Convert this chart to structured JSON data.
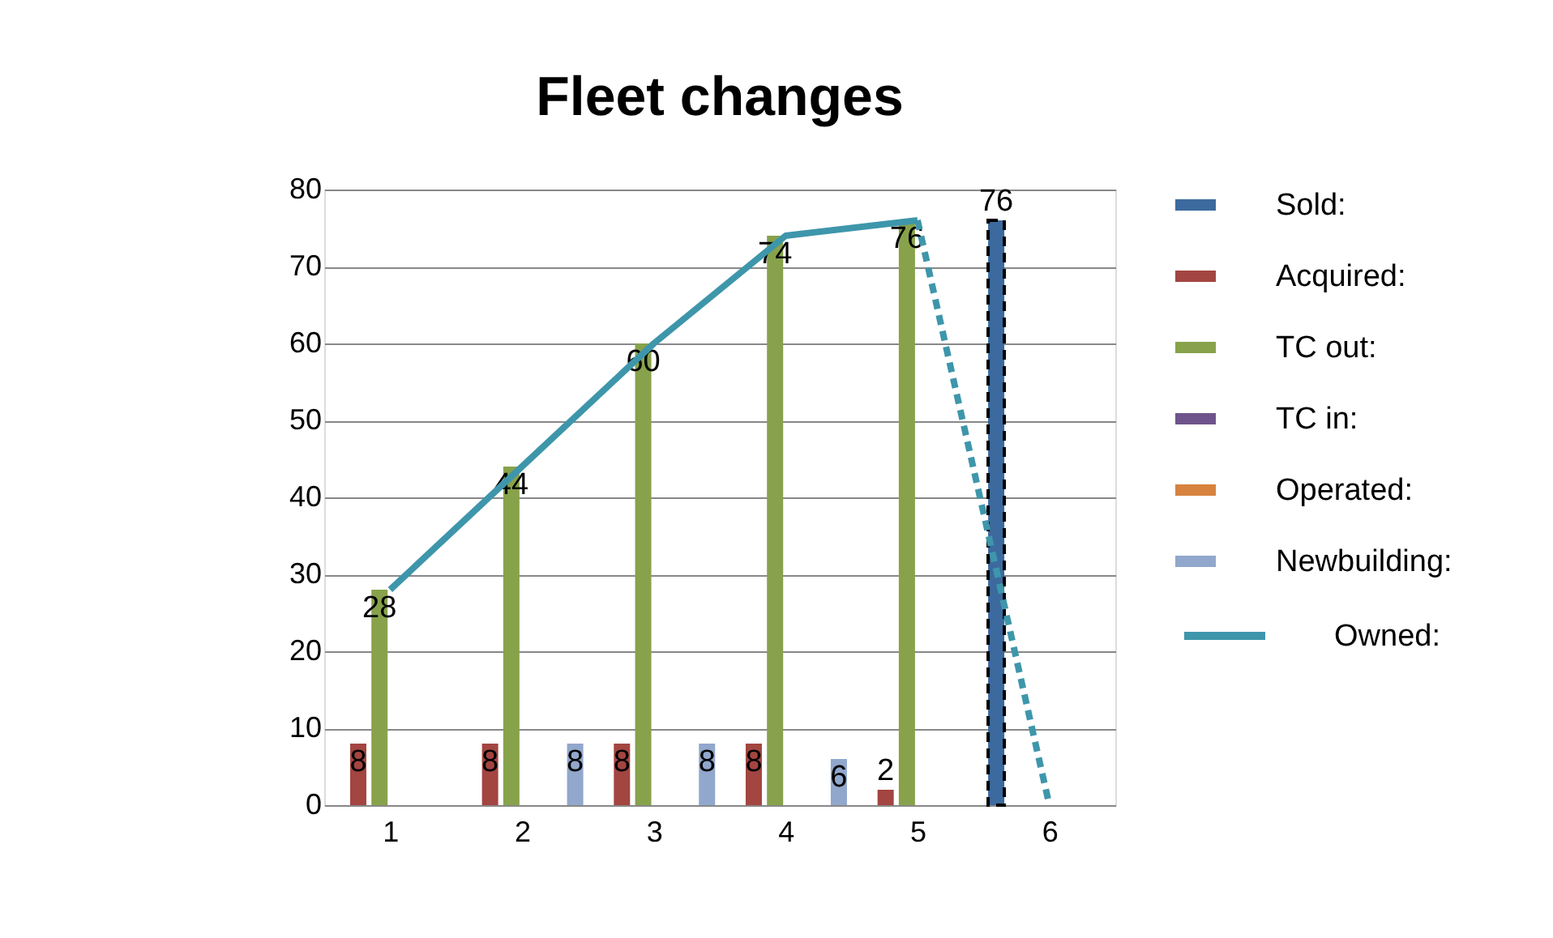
{
  "chart_data": {
    "type": "bar",
    "title": "Fleet changes",
    "categories": [
      "1",
      "2",
      "3",
      "4",
      "5",
      "6"
    ],
    "series": [
      {
        "name": "Sold:",
        "color": "#3c6a9e",
        "line_style": "dashed",
        "values": [
          null,
          null,
          null,
          null,
          null,
          76
        ],
        "value_labels": [
          null,
          null,
          null,
          null,
          null,
          "76"
        ]
      },
      {
        "name": "Acquired:",
        "color": "#a34541",
        "values": [
          8,
          8,
          8,
          8,
          2,
          null
        ],
        "value_labels": [
          "8",
          "8",
          "8",
          "8",
          "2",
          null
        ]
      },
      {
        "name": "TC out:",
        "color": "#87a24b",
        "values": [
          28,
          44,
          60,
          74,
          76,
          null
        ],
        "value_labels": [
          "28",
          "44",
          "60",
          "74",
          "76",
          null
        ]
      },
      {
        "name": "TC in:",
        "color": "#6e548a",
        "values": [
          null,
          null,
          null,
          null,
          null,
          null
        ]
      },
      {
        "name": "Operated:",
        "color": "#d7823e",
        "values": [
          null,
          null,
          null,
          null,
          null,
          null
        ]
      },
      {
        "name": "Newbuilding:",
        "color": "#91a7cc",
        "values": [
          null,
          8,
          8,
          6,
          null,
          null
        ],
        "value_labels": [
          null,
          "8",
          "8",
          "6",
          null,
          null
        ]
      },
      {
        "name": "Owned:",
        "type": "line",
        "color": "#3e96ab",
        "line_style": "solid",
        "values": [
          28,
          44,
          60,
          74,
          76,
          null
        ]
      },
      {
        "type": "line",
        "color": "#3e96ab",
        "line_style": "dashed",
        "values": [
          null,
          null,
          null,
          null,
          76,
          0
        ]
      }
    ],
    "ylim": [
      0,
      80
    ],
    "yticks": [
      0,
      10,
      20,
      30,
      40,
      50,
      60,
      70,
      80
    ],
    "grid": "y",
    "legend": "right"
  }
}
